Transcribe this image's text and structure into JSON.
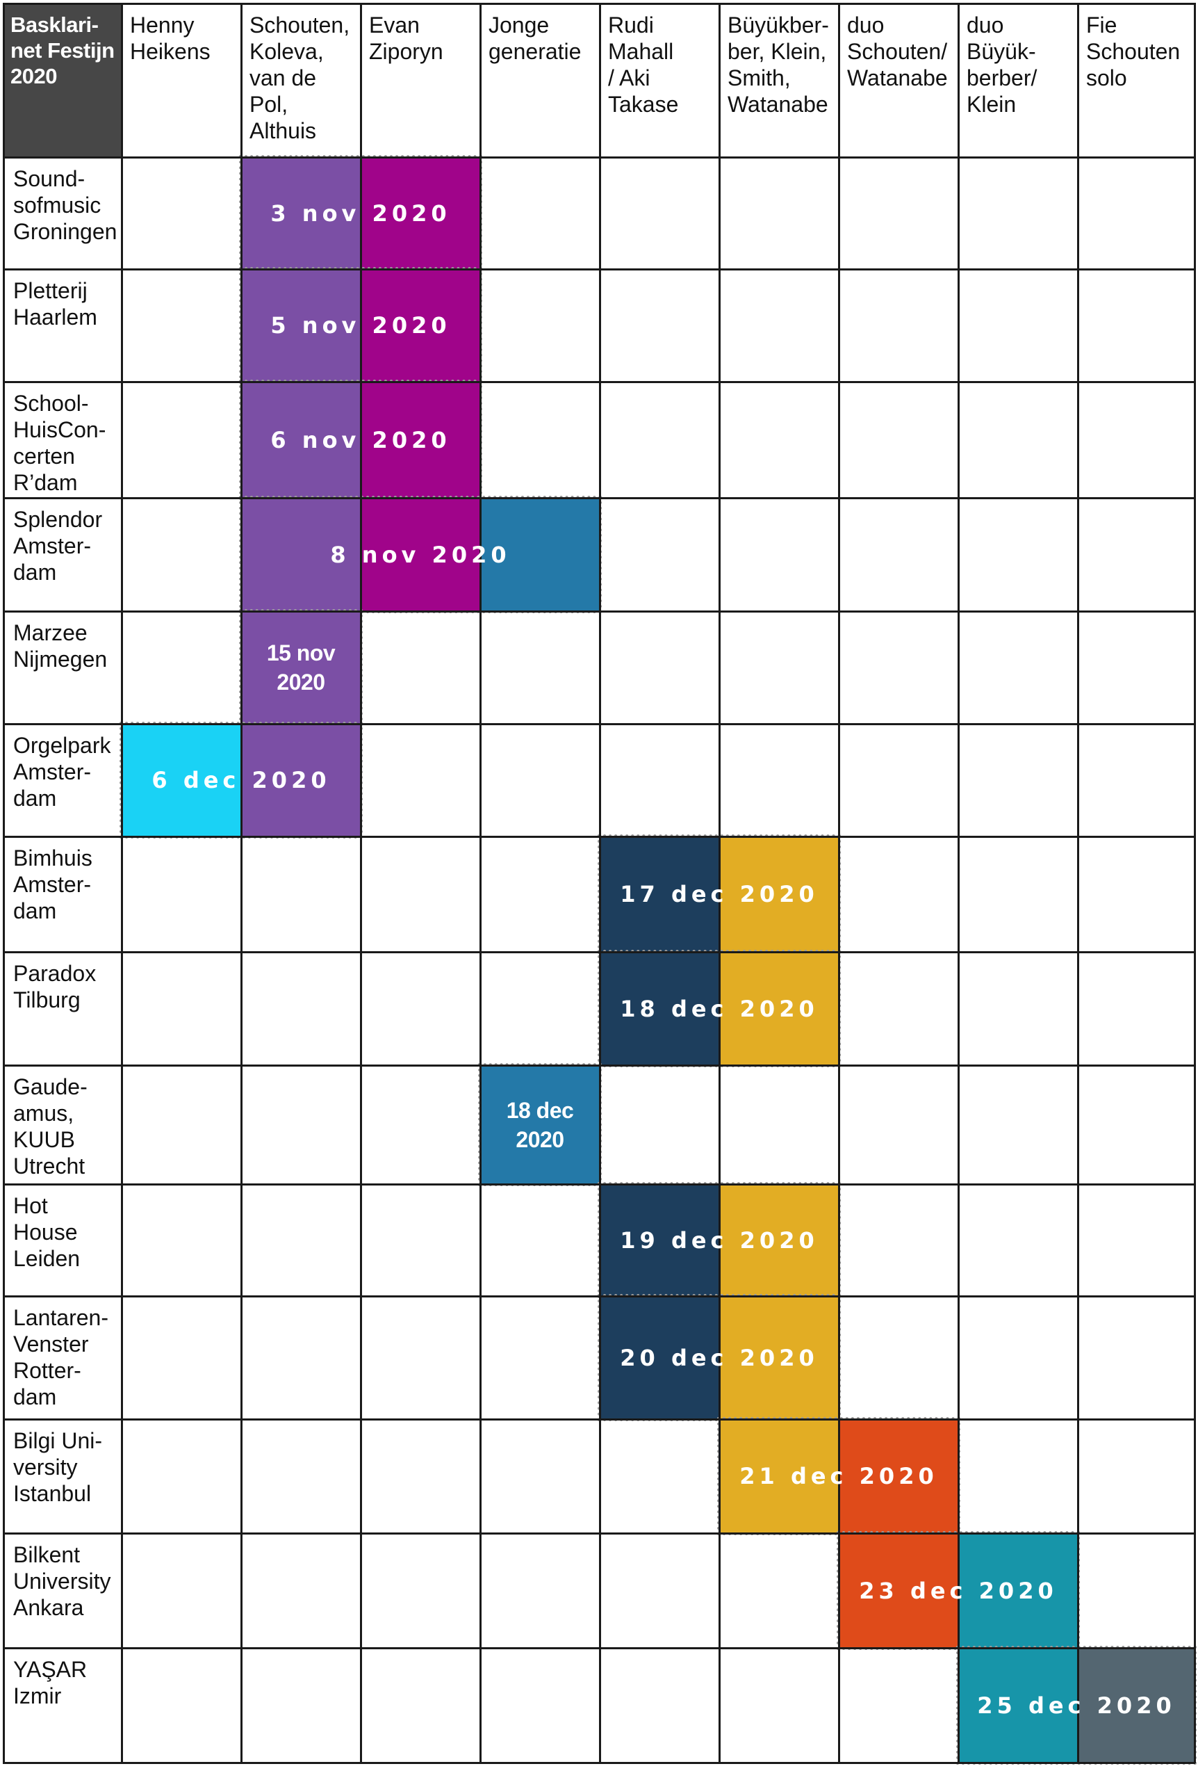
{
  "corner": "Basklari-\nnet Festijn\n2020",
  "columns": [
    "Henny\nHeikens",
    "Schouten,\nKoleva,\nvan de\nPol,\nAlthuis",
    "Evan\nZiporyn",
    "Jonge\ngeneratie",
    "Rudi\nMahall\n/ Aki\nTakase",
    "Büyükber-\nber, Klein,\nSmith,\nWatanabe",
    "duo\nSchouten/\nWatanabe",
    "duo\nBüyük-\nberber/\nKlein",
    "Fie\nSchouten\nsolo"
  ],
  "rows": [
    "Sound-\nsofmusic\nGroningen",
    "Pletterij\nHaarlem",
    "School-\nHuisCon-\ncerten\nR’dam",
    "Splendor\nAmster-\ndam",
    "Marzee\nNijmegen",
    "Orgelpark\nAmster-\ndam",
    "Bimhuis\nAmster-\ndam",
    "Paradox\nTilburg",
    "Gaude-\namus,\nKUUB\nUtrecht",
    "Hot\nHouse\nLeiden",
    "Lantaren-\nVenster\nRotter-\ndam",
    "Bilgi Uni-\nversity\nIstanbul",
    "Bilkent\nUniversity\nAnkara",
    "YAŞAR\nIzmir"
  ],
  "colors": {
    "henny": "#1ad2f5",
    "schouten": "#7b4fa5",
    "ziporyn": "#a0048a",
    "jonge": "#2479a8",
    "mahall": "#1d3e5d",
    "buyuk4": "#e2ad24",
    "duoSW": "#df4b1a",
    "duoBK": "#1795a9",
    "fie": "#546671"
  },
  "events": [
    {
      "row": 0,
      "cols": [
        "schouten",
        "ziporyn"
      ],
      "colIdx": [
        1,
        2
      ],
      "label": "3 nov 2020"
    },
    {
      "row": 1,
      "cols": [
        "schouten",
        "ziporyn"
      ],
      "colIdx": [
        1,
        2
      ],
      "label": "5 nov 2020"
    },
    {
      "row": 2,
      "cols": [
        "schouten",
        "ziporyn"
      ],
      "colIdx": [
        1,
        2
      ],
      "label": "6 nov 2020"
    },
    {
      "row": 3,
      "cols": [
        "schouten",
        "ziporyn",
        "jonge"
      ],
      "colIdx": [
        1,
        2,
        3
      ],
      "label": "8 nov 2020"
    },
    {
      "row": 4,
      "cols": [
        "schouten"
      ],
      "colIdx": [
        1
      ],
      "label": "15 nov\n2020"
    },
    {
      "row": 5,
      "cols": [
        "henny",
        "schouten"
      ],
      "colIdx": [
        0,
        1
      ],
      "label": "6 dec 2020"
    },
    {
      "row": 6,
      "cols": [
        "mahall",
        "buyuk4"
      ],
      "colIdx": [
        4,
        5
      ],
      "label": "17 dec 2020"
    },
    {
      "row": 7,
      "cols": [
        "mahall",
        "buyuk4"
      ],
      "colIdx": [
        4,
        5
      ],
      "label": "18 dec 2020"
    },
    {
      "row": 8,
      "cols": [
        "jonge"
      ],
      "colIdx": [
        3
      ],
      "label": "18 dec\n2020"
    },
    {
      "row": 9,
      "cols": [
        "mahall",
        "buyuk4"
      ],
      "colIdx": [
        4,
        5
      ],
      "label": "19 dec 2020"
    },
    {
      "row": 10,
      "cols": [
        "mahall",
        "buyuk4"
      ],
      "colIdx": [
        4,
        5
      ],
      "label": "20 dec 2020"
    },
    {
      "row": 11,
      "cols": [
        "buyuk4",
        "duoSW"
      ],
      "colIdx": [
        5,
        6
      ],
      "label": "21 dec 2020"
    },
    {
      "row": 12,
      "cols": [
        "duoSW",
        "duoBK"
      ],
      "colIdx": [
        6,
        7
      ],
      "label": "23 dec 2020"
    },
    {
      "row": 13,
      "cols": [
        "duoBK",
        "fie"
      ],
      "colIdx": [
        7,
        8
      ],
      "label": "25 dec 2020"
    }
  ]
}
